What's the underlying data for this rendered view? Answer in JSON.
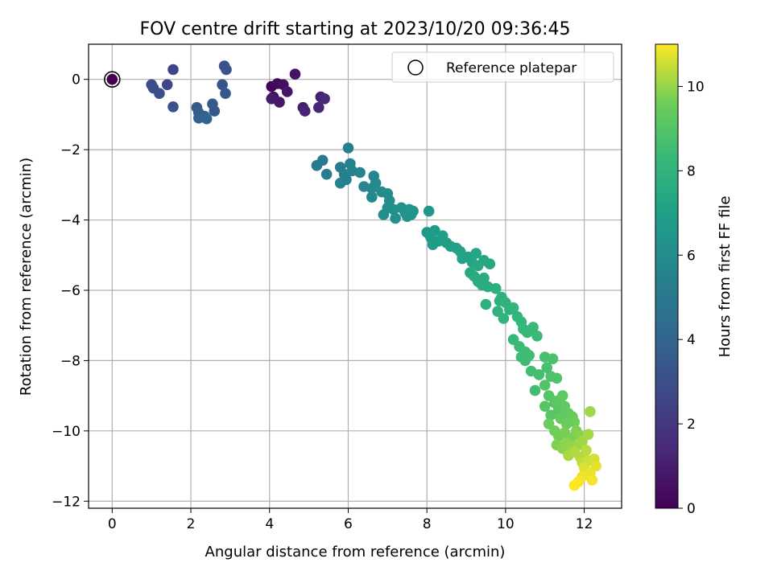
{
  "chart_data": {
    "type": "scatter",
    "title": "FOV centre drift starting at 2023/10/20 09:36:45",
    "xlabel": "Angular distance from reference (arcmin)",
    "ylabel": "Rotation from reference (arcmin)",
    "colorbar_label": "Hours from first FF file",
    "xlim": [
      -0.6,
      12.95
    ],
    "ylim": [
      -12.2,
      1.0
    ],
    "clim": [
      0,
      11
    ],
    "xticks": [
      0,
      2,
      4,
      6,
      8,
      10,
      12
    ],
    "yticks": [
      0,
      -2,
      -4,
      -6,
      -8,
      -10,
      -12
    ],
    "cticks": [
      0,
      2,
      4,
      6,
      8,
      10
    ],
    "xtick_labels": [
      "0",
      "2",
      "4",
      "6",
      "8",
      "10",
      "12"
    ],
    "ytick_labels": [
      "0",
      "−2",
      "−4",
      "−6",
      "−8",
      "−10",
      "−12"
    ],
    "ctick_labels": [
      "0",
      "2",
      "4",
      "6",
      "8",
      "10"
    ],
    "grid": true,
    "legend": {
      "position": "top-right",
      "entries": [
        "Reference platepar"
      ]
    },
    "colormap": "viridis",
    "reference_point": {
      "x": 0,
      "y": 0
    },
    "points": [
      [
        4.05,
        -0.2,
        0.1
      ],
      [
        4.2,
        -0.12,
        0.3
      ],
      [
        4.35,
        -0.15,
        0.5
      ],
      [
        4.45,
        -0.35,
        0.7
      ],
      [
        4.1,
        -0.5,
        0.4
      ],
      [
        4.25,
        -0.65,
        0.8
      ],
      [
        4.65,
        0.15,
        0.6
      ],
      [
        4.85,
        -0.8,
        1.0
      ],
      [
        4.9,
        -0.9,
        1.2
      ],
      [
        5.25,
        -0.8,
        1.3
      ],
      [
        5.3,
        -0.5,
        1.1
      ],
      [
        5.4,
        -0.55,
        1.4
      ],
      [
        4.05,
        -0.55,
        0.9
      ],
      [
        1.0,
        -0.15,
        2.8
      ],
      [
        1.05,
        -0.25,
        2.9
      ],
      [
        1.2,
        -0.4,
        3.0
      ],
      [
        1.4,
        -0.15,
        2.7
      ],
      [
        1.55,
        0.28,
        2.6
      ],
      [
        1.55,
        -0.78,
        3.1
      ],
      [
        2.15,
        -0.8,
        3.6
      ],
      [
        2.2,
        -0.95,
        3.7
      ],
      [
        2.2,
        -1.1,
        3.8
      ],
      [
        2.35,
        -1.05,
        3.9
      ],
      [
        2.4,
        -1.12,
        4.0
      ],
      [
        2.55,
        -0.7,
        3.5
      ],
      [
        2.6,
        -0.9,
        3.4
      ],
      [
        2.8,
        -0.15,
        3.3
      ],
      [
        2.85,
        0.38,
        3.2
      ],
      [
        2.9,
        0.28,
        3.25
      ],
      [
        2.88,
        -0.4,
        3.35
      ],
      [
        5.2,
        -2.45,
        5.0
      ],
      [
        5.35,
        -2.3,
        5.1
      ],
      [
        5.45,
        -2.7,
        5.2
      ],
      [
        5.8,
        -2.5,
        5.3
      ],
      [
        5.9,
        -2.7,
        5.4
      ],
      [
        5.8,
        -2.95,
        5.5
      ],
      [
        5.95,
        -2.85,
        5.45
      ],
      [
        6.0,
        -1.95,
        5.35
      ],
      [
        6.05,
        -2.4,
        5.5
      ],
      [
        6.1,
        -2.6,
        5.6
      ],
      [
        6.3,
        -2.65,
        5.65
      ],
      [
        6.4,
        -3.05,
        5.7
      ],
      [
        6.6,
        -3.1,
        5.8
      ],
      [
        6.6,
        -3.35,
        5.85
      ],
      [
        6.65,
        -2.75,
        5.75
      ],
      [
        6.7,
        -2.95,
        5.9
      ],
      [
        6.85,
        -3.2,
        5.95
      ],
      [
        7.0,
        -3.25,
        6.0
      ],
      [
        7.05,
        -3.45,
        6.05
      ],
      [
        7.0,
        -3.65,
        6.1
      ],
      [
        6.9,
        -3.85,
        6.15
      ],
      [
        7.15,
        -3.7,
        6.2
      ],
      [
        7.2,
        -3.95,
        6.25
      ],
      [
        7.35,
        -3.65,
        6.3
      ],
      [
        7.45,
        -3.8,
        6.35
      ],
      [
        7.55,
        -3.7,
        6.4
      ],
      [
        7.6,
        -3.85,
        6.45
      ],
      [
        7.65,
        -3.75,
        6.5
      ],
      [
        7.5,
        -3.9,
        6.4
      ],
      [
        8.0,
        -4.35,
        6.6
      ],
      [
        8.05,
        -3.75,
        6.55
      ],
      [
        8.1,
        -4.5,
        6.7
      ],
      [
        8.2,
        -4.3,
        6.75
      ],
      [
        8.3,
        -4.6,
        6.8
      ],
      [
        8.15,
        -4.7,
        6.85
      ],
      [
        8.4,
        -4.45,
        6.9
      ],
      [
        8.5,
        -4.65,
        6.95
      ],
      [
        8.6,
        -4.75,
        7.0
      ],
      [
        8.75,
        -4.8,
        7.05
      ],
      [
        8.85,
        -4.9,
        7.1
      ],
      [
        8.9,
        -5.1,
        7.15
      ],
      [
        9.05,
        -5.05,
        7.2
      ],
      [
        9.15,
        -5.2,
        7.25
      ],
      [
        9.25,
        -4.95,
        7.3
      ],
      [
        9.3,
        -5.3,
        7.35
      ],
      [
        9.45,
        -5.15,
        7.4
      ],
      [
        9.6,
        -5.25,
        7.45
      ],
      [
        9.1,
        -5.5,
        7.5
      ],
      [
        9.2,
        -5.6,
        7.55
      ],
      [
        9.3,
        -5.75,
        7.6
      ],
      [
        9.4,
        -5.85,
        7.65
      ],
      [
        9.45,
        -5.65,
        7.6
      ],
      [
        9.55,
        -5.9,
        7.7
      ],
      [
        9.75,
        -5.95,
        7.75
      ],
      [
        9.5,
        -6.4,
        7.8
      ],
      [
        9.85,
        -6.3,
        7.85
      ],
      [
        9.9,
        -6.2,
        7.9
      ],
      [
        10.0,
        -6.35,
        7.95
      ],
      [
        10.1,
        -6.55,
        8.0
      ],
      [
        9.8,
        -6.6,
        8.0
      ],
      [
        9.95,
        -6.8,
        8.05
      ],
      [
        10.2,
        -6.5,
        8.1
      ],
      [
        10.3,
        -6.75,
        8.15
      ],
      [
        10.4,
        -6.9,
        8.2
      ],
      [
        10.45,
        -7.1,
        8.25
      ],
      [
        10.55,
        -7.2,
        8.3
      ],
      [
        10.7,
        -7.05,
        8.35
      ],
      [
        10.8,
        -7.3,
        8.4
      ],
      [
        10.2,
        -7.4,
        8.3
      ],
      [
        10.35,
        -7.6,
        8.4
      ],
      [
        10.5,
        -7.75,
        8.45
      ],
      [
        10.4,
        -7.9,
        8.5
      ],
      [
        10.6,
        -7.85,
        8.55
      ],
      [
        10.5,
        -8.0,
        8.5
      ],
      [
        10.65,
        -8.3,
        8.6
      ],
      [
        10.75,
        -8.85,
        8.55
      ],
      [
        10.85,
        -8.4,
        8.65
      ],
      [
        11.0,
        -7.9,
        8.7
      ],
      [
        11.05,
        -8.2,
        8.75
      ],
      [
        11.2,
        -7.95,
        8.8
      ],
      [
        11.15,
        -8.45,
        8.85
      ],
      [
        11.3,
        -8.5,
        8.9
      ],
      [
        11.0,
        -8.7,
        8.95
      ],
      [
        11.1,
        -9.0,
        9.0
      ],
      [
        11.25,
        -9.2,
        9.05
      ],
      [
        11.35,
        -9.4,
        9.1
      ],
      [
        11.0,
        -9.3,
        9.1
      ],
      [
        11.15,
        -9.55,
        9.15
      ],
      [
        11.3,
        -9.15,
        9.2
      ],
      [
        11.45,
        -9.0,
        9.25
      ],
      [
        11.5,
        -9.3,
        9.3
      ],
      [
        11.6,
        -9.5,
        9.35
      ],
      [
        11.4,
        -9.65,
        9.4
      ],
      [
        11.7,
        -9.6,
        9.45
      ],
      [
        11.55,
        -9.8,
        9.5
      ],
      [
        11.75,
        -9.75,
        9.55
      ],
      [
        11.1,
        -9.8,
        9.5
      ],
      [
        11.25,
        -10.0,
        9.6
      ],
      [
        11.35,
        -10.15,
        9.65
      ],
      [
        11.5,
        -10.05,
        9.7
      ],
      [
        11.65,
        -10.2,
        9.75
      ],
      [
        11.8,
        -10.0,
        9.8
      ],
      [
        11.9,
        -10.15,
        9.85
      ],
      [
        11.3,
        -10.4,
        9.8
      ],
      [
        11.45,
        -10.5,
        9.9
      ],
      [
        11.55,
        -10.35,
        9.95
      ],
      [
        11.7,
        -10.45,
        10.0
      ],
      [
        11.85,
        -10.4,
        10.05
      ],
      [
        11.95,
        -10.3,
        10.1
      ],
      [
        12.1,
        -10.1,
        10.15
      ],
      [
        12.15,
        -9.45,
        10.1
      ],
      [
        11.6,
        -10.7,
        10.2
      ],
      [
        11.75,
        -10.6,
        10.25
      ],
      [
        11.9,
        -10.75,
        10.3
      ],
      [
        12.05,
        -10.55,
        10.35
      ],
      [
        11.95,
        -10.9,
        10.4
      ],
      [
        12.1,
        -10.85,
        10.5
      ],
      [
        12.25,
        -10.8,
        10.6
      ],
      [
        12.0,
        -11.05,
        10.7
      ],
      [
        12.3,
        -11.0,
        10.75
      ],
      [
        12.15,
        -11.2,
        10.8
      ],
      [
        11.95,
        -11.3,
        10.85
      ],
      [
        12.2,
        -11.4,
        10.9
      ],
      [
        11.85,
        -11.45,
        10.95
      ],
      [
        11.75,
        -11.55,
        11.0
      ]
    ]
  }
}
